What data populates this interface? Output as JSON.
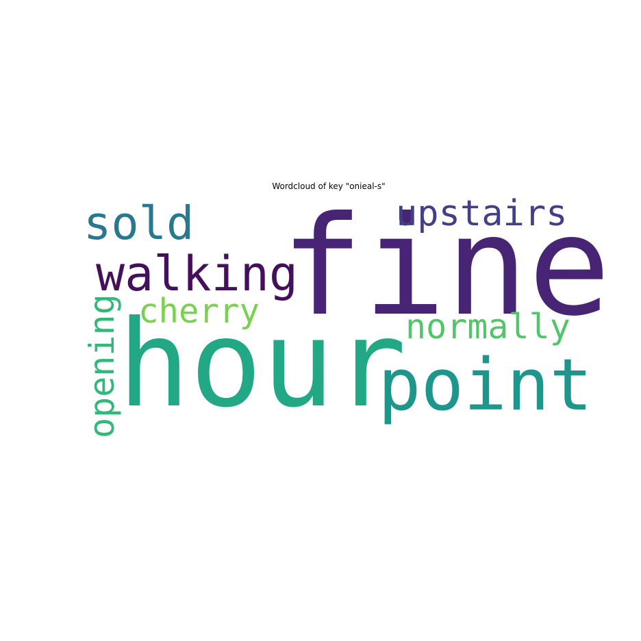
{
  "chart_data": {
    "type": "wordcloud",
    "title": "Wordcloud of key \"onieal-s\"",
    "words": [
      {
        "text": "fine",
        "color": "#482475",
        "weight": 1.0
      },
      {
        "text": "hour",
        "color": "#22a884",
        "weight": 0.95
      },
      {
        "text": "point",
        "color": "#1f968b",
        "weight": 0.55
      },
      {
        "text": "walking",
        "color": "#440f5b",
        "weight": 0.4
      },
      {
        "text": "sold",
        "color": "#2a788e",
        "weight": 0.36
      },
      {
        "text": "upstairs",
        "color": "#433e85",
        "weight": 0.3
      },
      {
        "text": "normally",
        "color": "#52c569",
        "weight": 0.28
      },
      {
        "text": "cherry",
        "color": "#7ad151",
        "weight": 0.27
      },
      {
        "text": "opening",
        "color": "#35b779",
        "weight": 0.27
      }
    ]
  }
}
